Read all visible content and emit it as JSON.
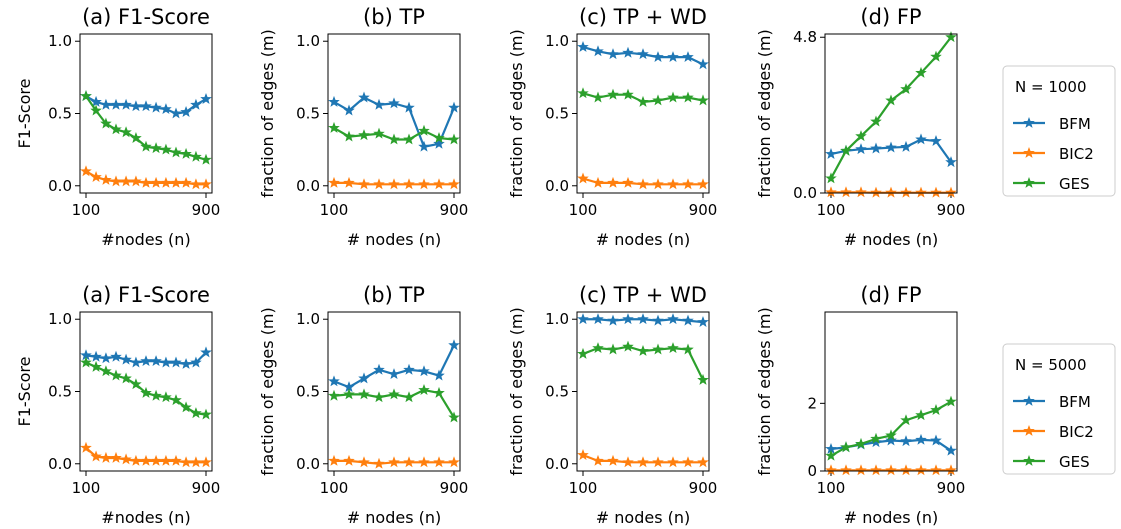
{
  "colors": {
    "BFM": "#1f77b4",
    "BIC2": "#ff7f0e",
    "GES": "#2ca02c"
  },
  "chart_data": [
    {
      "type": "line",
      "title": "(a) F1-Score",
      "xlabel": "#nodes (n)",
      "ylabel": "F1-Score",
      "x": [
        100,
        167,
        233,
        300,
        367,
        433,
        500,
        567,
        633,
        700,
        767,
        833,
        900
      ],
      "xticks": [
        "100",
        "900"
      ],
      "ylim": [
        -0.05,
        1.05
      ],
      "yticks": [
        "0.0",
        "0.5",
        "1.0"
      ],
      "series": [
        {
          "name": "BFM",
          "values": [
            0.62,
            0.58,
            0.56,
            0.56,
            0.56,
            0.55,
            0.55,
            0.54,
            0.53,
            0.5,
            0.51,
            0.56,
            0.6
          ]
        },
        {
          "name": "BIC2",
          "values": [
            0.1,
            0.06,
            0.04,
            0.03,
            0.03,
            0.03,
            0.02,
            0.02,
            0.02,
            0.02,
            0.02,
            0.01,
            0.01
          ]
        },
        {
          "name": "GES",
          "values": [
            0.62,
            0.52,
            0.43,
            0.39,
            0.37,
            0.33,
            0.27,
            0.26,
            0.25,
            0.23,
            0.22,
            0.2,
            0.18
          ]
        }
      ]
    },
    {
      "type": "line",
      "title": "(b) TP",
      "xlabel": "# nodes (n)",
      "ylabel": "fraction of edges (m)",
      "x": [
        100,
        200,
        300,
        400,
        500,
        600,
        700,
        800,
        900
      ],
      "xticks": [
        "100",
        "900"
      ],
      "ylim": [
        -0.05,
        1.05
      ],
      "yticks": [
        "0.0",
        "0.5",
        "1.0"
      ],
      "series": [
        {
          "name": "BFM",
          "values": [
            0.58,
            0.52,
            0.61,
            0.56,
            0.57,
            0.54,
            0.27,
            0.29,
            0.54
          ]
        },
        {
          "name": "BIC2",
          "values": [
            0.02,
            0.02,
            0.01,
            0.01,
            0.01,
            0.01,
            0.01,
            0.01,
            0.01
          ]
        },
        {
          "name": "GES",
          "values": [
            0.4,
            0.34,
            0.35,
            0.36,
            0.32,
            0.32,
            0.38,
            0.33,
            0.32
          ]
        }
      ]
    },
    {
      "type": "line",
      "title": "(c) TP + WD",
      "xlabel": "# nodes (n)",
      "ylabel": "fraction of edges (m)",
      "x": [
        100,
        200,
        300,
        400,
        500,
        600,
        700,
        800,
        900
      ],
      "xticks": [
        "100",
        "900"
      ],
      "ylim": [
        -0.05,
        1.05
      ],
      "yticks": [
        "0.0",
        "0.5",
        "1.0"
      ],
      "series": [
        {
          "name": "BFM",
          "values": [
            0.96,
            0.93,
            0.91,
            0.92,
            0.91,
            0.89,
            0.89,
            0.89,
            0.84
          ]
        },
        {
          "name": "BIC2",
          "values": [
            0.05,
            0.02,
            0.02,
            0.02,
            0.01,
            0.01,
            0.01,
            0.01,
            0.01
          ]
        },
        {
          "name": "GES",
          "values": [
            0.64,
            0.61,
            0.63,
            0.63,
            0.58,
            0.59,
            0.61,
            0.61,
            0.59
          ]
        }
      ]
    },
    {
      "type": "line",
      "title": "(d) FP",
      "xlabel": "# nodes (n)",
      "ylabel": "fraction of edges (m)",
      "x": [
        100,
        200,
        300,
        400,
        500,
        600,
        700,
        800,
        900
      ],
      "xticks": [
        "100",
        "900"
      ],
      "ylim": [
        0,
        4.9
      ],
      "yticks": [
        "0.0",
        "4.8"
      ],
      "series": [
        {
          "name": "BFM",
          "values": [
            1.2,
            1.3,
            1.35,
            1.37,
            1.4,
            1.42,
            1.65,
            1.6,
            0.95
          ]
        },
        {
          "name": "BIC2",
          "values": [
            0.02,
            0.02,
            0.02,
            0.01,
            0.01,
            0.01,
            0.01,
            0.01,
            0.01
          ]
        },
        {
          "name": "GES",
          "values": [
            0.45,
            1.3,
            1.75,
            2.2,
            2.85,
            3.2,
            3.7,
            4.2,
            4.8
          ]
        }
      ]
    },
    {
      "type": "line",
      "title": "(a) F1-Score",
      "xlabel": "#nodes (n)",
      "ylabel": "F1-Score",
      "x": [
        100,
        167,
        233,
        300,
        367,
        433,
        500,
        567,
        633,
        700,
        767,
        833,
        900
      ],
      "xticks": [
        "100",
        "900"
      ],
      "ylim": [
        -0.05,
        1.05
      ],
      "yticks": [
        "0.0",
        "0.5",
        "1.0"
      ],
      "series": [
        {
          "name": "BFM",
          "values": [
            0.75,
            0.74,
            0.73,
            0.74,
            0.72,
            0.7,
            0.71,
            0.71,
            0.7,
            0.7,
            0.69,
            0.7,
            0.77
          ]
        },
        {
          "name": "BIC2",
          "values": [
            0.11,
            0.05,
            0.04,
            0.04,
            0.03,
            0.02,
            0.02,
            0.02,
            0.02,
            0.02,
            0.01,
            0.01,
            0.01
          ]
        },
        {
          "name": "GES",
          "values": [
            0.7,
            0.67,
            0.64,
            0.61,
            0.59,
            0.55,
            0.49,
            0.47,
            0.46,
            0.44,
            0.39,
            0.35,
            0.34
          ]
        }
      ]
    },
    {
      "type": "line",
      "title": "(b) TP",
      "xlabel": "# nodes (n)",
      "ylabel": "fraction of edges (m)",
      "x": [
        100,
        200,
        300,
        400,
        500,
        600,
        700,
        800,
        900
      ],
      "xticks": [
        "100",
        "900"
      ],
      "ylim": [
        -0.05,
        1.05
      ],
      "yticks": [
        "0.0",
        "0.5",
        "1.0"
      ],
      "series": [
        {
          "name": "BFM",
          "values": [
            0.57,
            0.53,
            0.59,
            0.65,
            0.62,
            0.65,
            0.64,
            0.61,
            0.82
          ]
        },
        {
          "name": "BIC2",
          "values": [
            0.02,
            0.02,
            0.01,
            0.0,
            0.01,
            0.01,
            0.01,
            0.01,
            0.01
          ]
        },
        {
          "name": "GES",
          "values": [
            0.47,
            0.48,
            0.48,
            0.46,
            0.48,
            0.46,
            0.51,
            0.49,
            0.32
          ]
        }
      ]
    },
    {
      "type": "line",
      "title": "(c) TP + WD",
      "xlabel": "# nodes (n)",
      "ylabel": "fraction of edges (m)",
      "x": [
        100,
        200,
        300,
        400,
        500,
        600,
        700,
        800,
        900
      ],
      "xticks": [
        "100",
        "900"
      ],
      "ylim": [
        -0.05,
        1.05
      ],
      "yticks": [
        "0.0",
        "0.5",
        "1.0"
      ],
      "series": [
        {
          "name": "BFM",
          "values": [
            1.0,
            1.0,
            0.99,
            1.0,
            1.0,
            0.99,
            1.0,
            0.99,
            0.98
          ]
        },
        {
          "name": "BIC2",
          "values": [
            0.06,
            0.02,
            0.02,
            0.01,
            0.01,
            0.01,
            0.01,
            0.01,
            0.01
          ]
        },
        {
          "name": "GES",
          "values": [
            0.76,
            0.8,
            0.79,
            0.81,
            0.78,
            0.79,
            0.8,
            0.79,
            0.58
          ]
        }
      ]
    },
    {
      "type": "line",
      "title": "(d) FP",
      "xlabel": "# nodes (n)",
      "ylabel": "fraction of edges (m)",
      "x": [
        100,
        200,
        300,
        400,
        500,
        600,
        700,
        800,
        900
      ],
      "xticks": [
        "100",
        "900"
      ],
      "ylim": [
        0,
        4.7
      ],
      "yticks": [
        "0",
        "2"
      ],
      "series": [
        {
          "name": "BFM",
          "values": [
            0.65,
            0.7,
            0.78,
            0.85,
            0.9,
            0.88,
            0.92,
            0.9,
            0.6
          ]
        },
        {
          "name": "BIC2",
          "values": [
            0.02,
            0.02,
            0.02,
            0.02,
            0.02,
            0.02,
            0.02,
            0.02,
            0.02
          ]
        },
        {
          "name": "GES",
          "values": [
            0.45,
            0.7,
            0.8,
            0.95,
            1.05,
            1.5,
            1.65,
            1.8,
            2.05
          ]
        }
      ]
    }
  ],
  "legends": [
    {
      "title": "N = 1000",
      "entries": [
        "BFM",
        "BIC2",
        "GES"
      ]
    },
    {
      "title": "N = 5000",
      "entries": [
        "BFM",
        "BIC2",
        "GES"
      ]
    }
  ]
}
